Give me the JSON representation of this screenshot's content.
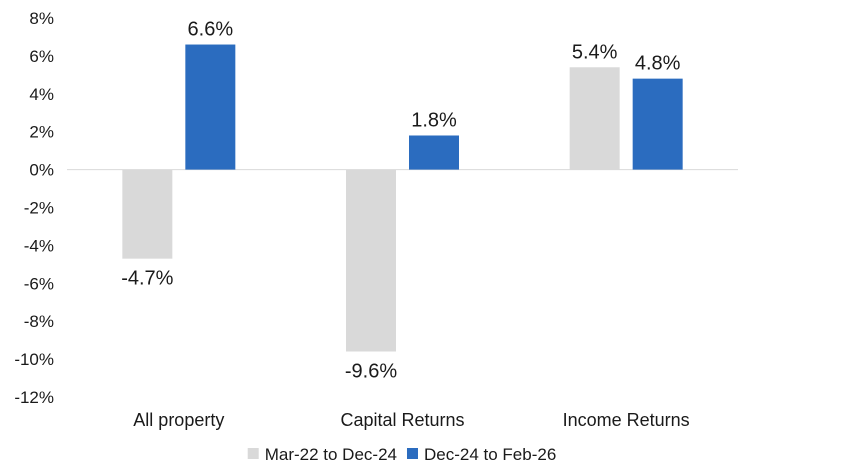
{
  "chart_data": {
    "type": "bar",
    "categories": [
      "All property",
      "Capital Returns",
      "Income Returns"
    ],
    "series": [
      {
        "name": "Mar-22 to Dec-24",
        "values": [
          -4.7,
          -9.6,
          5.4
        ],
        "labels": [
          "-4.7%",
          "-9.6%",
          "5.4%"
        ],
        "color": "#d9d9d9"
      },
      {
        "name": "Dec-24 to Feb-26",
        "values": [
          6.6,
          1.8,
          4.8
        ],
        "labels": [
          "6.6%",
          "1.8%",
          "4.8%"
        ],
        "color": "#2b6cbf"
      }
    ],
    "ylim": [
      -12,
      8
    ],
    "yticks": [
      8,
      6,
      4,
      2,
      0,
      -2,
      -4,
      -6,
      -8,
      -10,
      -12
    ],
    "ytick_labels": [
      "8%",
      "6%",
      "4%",
      "2%",
      "0%",
      "-2%",
      "-4%",
      "-6%",
      "-8%",
      "-10%",
      "-12%"
    ],
    "grid": false,
    "legend_position": "bottom"
  }
}
